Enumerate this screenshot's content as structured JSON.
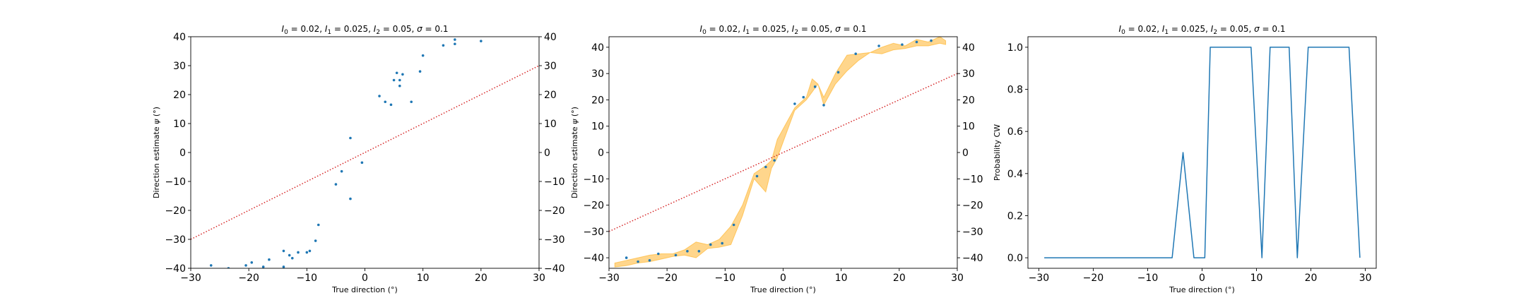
{
  "chart_data": [
    {
      "type": "scatter",
      "title": "$I_0 = 0.02$, $I_1 = 0.025$, $I_2 = 0.05$, $\\sigma = 0.1$",
      "title_parts": [
        {
          "t": "I",
          "i": true
        },
        {
          "t": "0",
          "sub": true
        },
        {
          "t": " = 0.02, "
        },
        {
          "t": "I",
          "i": true
        },
        {
          "t": "1",
          "sub": true
        },
        {
          "t": " = 0.025, "
        },
        {
          "t": "I",
          "i": true
        },
        {
          "t": "2",
          "sub": true
        },
        {
          "t": " = 0.05, "
        },
        {
          "t": "σ",
          "i": true
        },
        {
          "t": " = 0.1"
        }
      ],
      "xlabel": "True direction (°)",
      "ylabel_parts": [
        {
          "t": "Direction estimate "
        },
        {
          "t": "ψ",
          "i": true
        },
        {
          "t": " (°)"
        }
      ],
      "xlim": [
        -30,
        30
      ],
      "ylim": [
        -40,
        40
      ],
      "xticks": [
        -30,
        -20,
        -10,
        0,
        10,
        20,
        30
      ],
      "yticks": [
        -40,
        -30,
        -20,
        -10,
        0,
        10,
        20,
        30,
        40
      ],
      "right_yticks": true,
      "points": [
        [
          -26.5,
          -39
        ],
        [
          -23.5,
          -40
        ],
        [
          -20.5,
          -39
        ],
        [
          -19.5,
          -38
        ],
        [
          -17.5,
          -39.5
        ],
        [
          -16.5,
          -37
        ],
        [
          -14,
          -34
        ],
        [
          -14,
          -39.5
        ],
        [
          -13,
          -35.5
        ],
        [
          -12.5,
          -36.5
        ],
        [
          -11.5,
          -34.5
        ],
        [
          -10,
          -34.5
        ],
        [
          -9.5,
          -34
        ],
        [
          -8.5,
          -30.5
        ],
        [
          -8,
          -25
        ],
        [
          -5,
          -11
        ],
        [
          -4,
          -6.5
        ],
        [
          -2.5,
          5
        ],
        [
          -2.5,
          -16
        ],
        [
          -0.5,
          -3.5
        ],
        [
          2.5,
          19.5
        ],
        [
          3.5,
          17.5
        ],
        [
          4.5,
          16.5
        ],
        [
          5,
          25
        ],
        [
          5.5,
          27.5
        ],
        [
          6,
          23
        ],
        [
          6,
          25
        ],
        [
          6.5,
          27
        ],
        [
          8,
          17.5
        ],
        [
          9.5,
          28
        ],
        [
          10,
          33.5
        ],
        [
          13.5,
          37
        ],
        [
          15.5,
          37.5
        ],
        [
          15.5,
          39
        ],
        [
          20,
          38.5
        ]
      ],
      "reference_line": {
        "slope": 1,
        "color": "#d62728",
        "style": "dotted"
      }
    },
    {
      "type": "scatter",
      "title": "$I_0 = 0.02$, $I_1 = 0.025$, $I_2 = 0.05$, $\\sigma = 0.1$",
      "title_parts": [
        {
          "t": "I",
          "i": true
        },
        {
          "t": "0",
          "sub": true
        },
        {
          "t": " = 0.02, "
        },
        {
          "t": "I",
          "i": true
        },
        {
          "t": "1",
          "sub": true
        },
        {
          "t": " = 0.025, "
        },
        {
          "t": "I",
          "i": true
        },
        {
          "t": "2",
          "sub": true
        },
        {
          "t": " = 0.05, "
        },
        {
          "t": "σ",
          "i": true
        },
        {
          "t": " = 0.1"
        }
      ],
      "xlabel": "True direction (°)",
      "ylabel_parts": [
        {
          "t": "Direction estimate "
        },
        {
          "t": "ψ",
          "i": true
        },
        {
          "t": " (°)"
        }
      ],
      "xlim": [
        -30,
        30
      ],
      "ylim": [
        -44,
        44
      ],
      "xticks": [
        -30,
        -20,
        -10,
        0,
        10,
        20,
        30
      ],
      "yticks": [
        -40,
        -30,
        -20,
        -10,
        0,
        10,
        20,
        30,
        40
      ],
      "right_yticks": true,
      "points": [
        [
          -27,
          -40
        ],
        [
          -25,
          -41.5
        ],
        [
          -23,
          -41
        ],
        [
          -21.5,
          -38.5
        ],
        [
          -18.5,
          -39
        ],
        [
          -16.5,
          -37.5
        ],
        [
          -14.5,
          -37.5
        ],
        [
          -12.5,
          -35
        ],
        [
          -10.5,
          -34.5
        ],
        [
          -8.5,
          -27.5
        ],
        [
          -4.5,
          -9
        ],
        [
          -3,
          -5.5
        ],
        [
          -1.5,
          -3
        ],
        [
          2,
          18.5
        ],
        [
          3.5,
          21
        ],
        [
          5.5,
          25
        ],
        [
          7,
          18
        ],
        [
          9.5,
          30.5
        ],
        [
          12.5,
          37.5
        ],
        [
          16.5,
          40.5
        ],
        [
          20.5,
          41
        ],
        [
          23,
          42
        ],
        [
          25.5,
          42.5
        ]
      ],
      "band": {
        "color": "#ffa500",
        "x": [
          -29,
          -27,
          -25,
          -23,
          -21,
          -19,
          -17,
          -15,
          -13,
          -11,
          -9,
          -7,
          -5,
          -3,
          -2,
          -1,
          0,
          2,
          4,
          5,
          6,
          7,
          9,
          11,
          13,
          15,
          17,
          19,
          21,
          23,
          25,
          27,
          28
        ],
        "upper": [
          -42,
          -41,
          -40,
          -39,
          -38.5,
          -38.5,
          -37,
          -34,
          -35,
          -33,
          -28,
          -20,
          -8,
          -5,
          -3,
          5,
          9,
          17,
          21,
          28,
          26,
          21,
          30,
          37,
          37.5,
          38,
          40,
          41.5,
          40.5,
          43,
          42,
          44,
          42.5
        ],
        "lower": [
          -43.5,
          -43,
          -42,
          -41.5,
          -40.5,
          -39.5,
          -39,
          -40,
          -36.5,
          -36,
          -35,
          -24,
          -10,
          -15,
          -6,
          -2,
          4,
          16,
          20,
          23,
          26,
          18,
          26,
          31,
          35,
          38,
          37.5,
          39,
          39.5,
          40.5,
          40.5,
          41.5,
          41
        ]
      },
      "reference_line": {
        "slope": 1,
        "color": "#d62728",
        "style": "dotted"
      }
    },
    {
      "type": "line",
      "title": "$I_0 = 0.02$, $I_1 = 0.025$, $I_2 = 0.05$, $\\sigma = 0.1$",
      "title_parts": [
        {
          "t": "I",
          "i": true
        },
        {
          "t": "0",
          "sub": true
        },
        {
          "t": " = 0.02, "
        },
        {
          "t": "I",
          "i": true
        },
        {
          "t": "1",
          "sub": true
        },
        {
          "t": " = 0.025, "
        },
        {
          "t": "I",
          "i": true
        },
        {
          "t": "2",
          "sub": true
        },
        {
          "t": " = 0.05, "
        },
        {
          "t": "σ",
          "i": true
        },
        {
          "t": " = 0.1"
        }
      ],
      "xlabel": "True direction (°)",
      "ylabel_parts": [
        {
          "t": "Probability CW"
        }
      ],
      "xlim": [
        -32,
        32
      ],
      "ylim": [
        -0.05,
        1.05
      ],
      "xticks": [
        -30,
        -20,
        -10,
        0,
        10,
        20,
        30
      ],
      "yticks": [
        0.0,
        0.2,
        0.4,
        0.6,
        0.8,
        1.0
      ],
      "ytick_labels": [
        "0.0",
        "0.2",
        "0.4",
        "0.6",
        "0.8",
        "1.0"
      ],
      "right_yticks": false,
      "line": [
        [
          -29,
          0
        ],
        [
          -5.5,
          0
        ],
        [
          -3.5,
          0.5
        ],
        [
          -1.5,
          0
        ],
        [
          0,
          0
        ],
        [
          0.5,
          0
        ],
        [
          1.5,
          1
        ],
        [
          9,
          1
        ],
        [
          11,
          0
        ],
        [
          12.5,
          1
        ],
        [
          16,
          1
        ],
        [
          17.5,
          0
        ],
        [
          19.5,
          1
        ],
        [
          27,
          1
        ],
        [
          29,
          0
        ]
      ],
      "line_color": "#1f77b4"
    }
  ]
}
